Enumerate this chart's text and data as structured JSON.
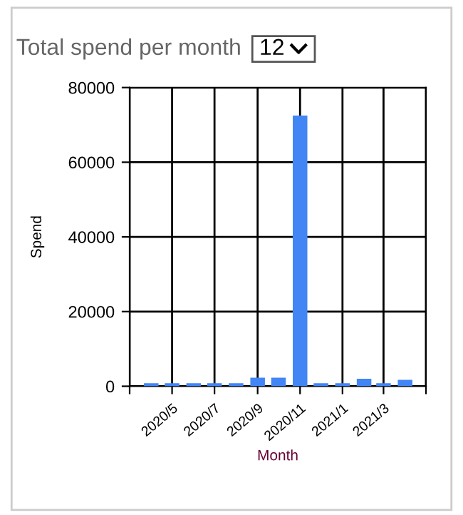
{
  "chart_data": {
    "type": "bar",
    "title": "Total spend per month",
    "annotations": [
      "12"
    ],
    "xlabel": "Month",
    "ylabel": "Spend",
    "x": [
      "2020-04",
      "2020-05",
      "2020-06",
      "2020-07",
      "2020-08",
      "2020-09",
      "2020-10",
      "2020-11",
      "2020-12",
      "2021-01",
      "2021-02",
      "2021-03",
      "2021-04"
    ],
    "values": [
      800,
      800,
      800,
      800,
      800,
      2300,
      2300,
      72500,
      800,
      800,
      2000,
      800,
      1700
    ],
    "color": "#4285f4",
    "xlim": [
      "2020-03",
      "2021-05"
    ],
    "xticks": [
      {
        "value": "2020-03",
        "label": null
      },
      {
        "value": "2020-05",
        "label": "2020/5"
      },
      {
        "value": "2020-07",
        "label": "2020/7"
      },
      {
        "value": "2020-09",
        "label": "2020/9"
      },
      {
        "value": "2020-11",
        "label": "2020/11"
      },
      {
        "value": "2021-01",
        "label": "2021/1"
      },
      {
        "value": "2021-03",
        "label": "2021/3"
      },
      {
        "value": "2021-05",
        "label": null
      }
    ],
    "ylim": [
      0,
      80000
    ],
    "yticks": [
      0,
      20000,
      40000,
      60000,
      80000
    ],
    "grid": true
  }
}
